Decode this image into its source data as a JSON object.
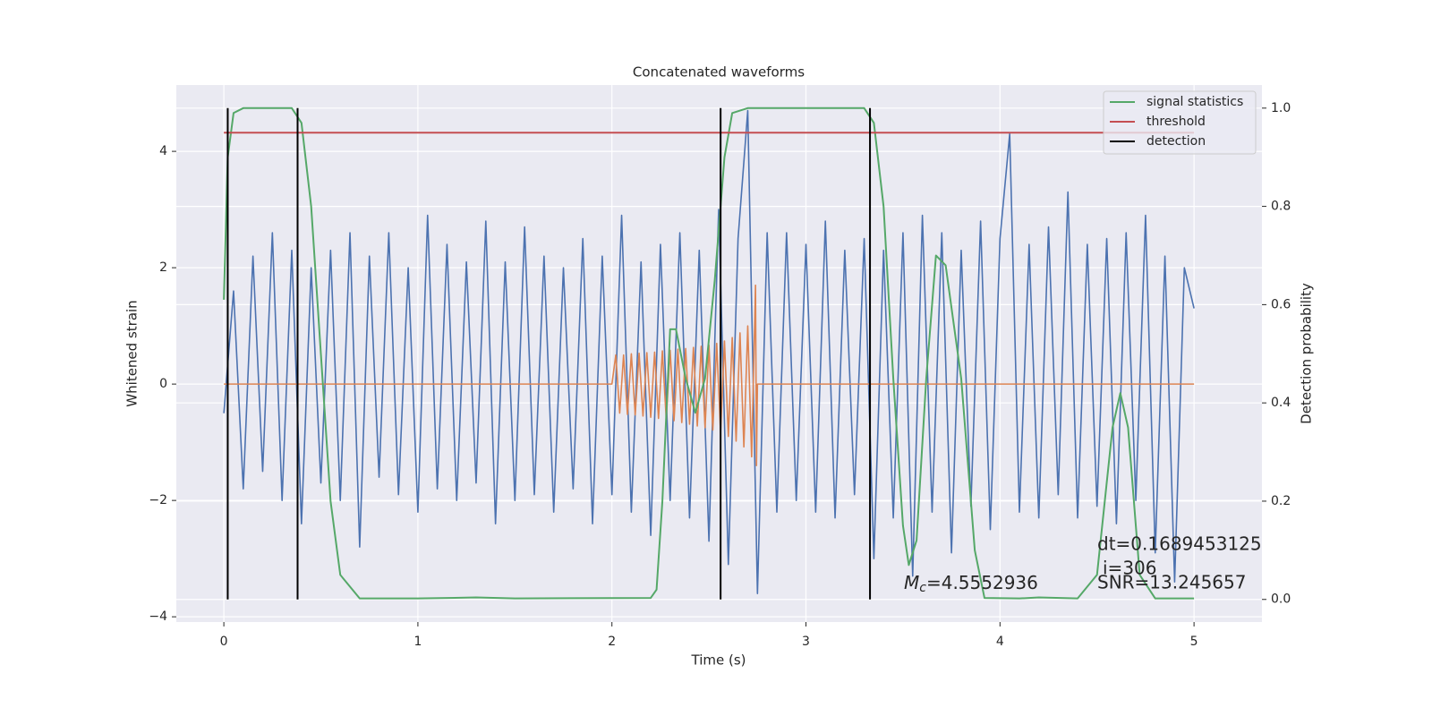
{
  "chart_data": {
    "type": "line",
    "title": "Concatenated waveforms",
    "xlabel": "Time (s)",
    "ylabel": "Whitened strain",
    "y2label": "Detection probability",
    "xlim": [
      -0.245,
      5.35
    ],
    "ylim": [
      -4.09,
      5.14
    ],
    "y2lim": [
      -0.046,
      1.047
    ],
    "xticks": [
      0,
      1,
      2,
      3,
      4,
      5
    ],
    "yticks": [
      {
        "value": -4,
        "label": "−4"
      },
      {
        "value": -2,
        "label": "−2"
      },
      0,
      2,
      4
    ],
    "y2ticks": [
      {
        "value": 0,
        "label": "0.0"
      },
      {
        "value": 0.2,
        "label": "0.2"
      },
      {
        "value": 0.4,
        "label": "0.4"
      },
      {
        "value": 0.6,
        "label": "0.6"
      },
      {
        "value": 0.8,
        "label": "0.8"
      },
      {
        "value": 1,
        "label": "1.0"
      }
    ],
    "grid": true,
    "legend": "upper right",
    "series": [
      {
        "color": "#4c72b0",
        "x": [
          0,
          0.05,
          0.1,
          0.15,
          0.2,
          0.25,
          0.3,
          0.35,
          0.4,
          0.45,
          0.5,
          0.55,
          0.6,
          0.65,
          0.7,
          0.75,
          0.8,
          0.85,
          0.9,
          0.95,
          1,
          1.05,
          1.1,
          1.15,
          1.2,
          1.25,
          1.3,
          1.35,
          1.4,
          1.45,
          1.5,
          1.55,
          1.6,
          1.65,
          1.7,
          1.75,
          1.8,
          1.85,
          1.9,
          1.95,
          2,
          2.05,
          2.1,
          2.15,
          2.2,
          2.25,
          2.3,
          2.35,
          2.4,
          2.45,
          2.5,
          2.55,
          2.6,
          2.65,
          2.7,
          2.75,
          2.8,
          2.85,
          2.9,
          2.95,
          3,
          3.05,
          3.1,
          3.15,
          3.2,
          3.25,
          3.3,
          3.35,
          3.4,
          3.45,
          3.5,
          3.55,
          3.6,
          3.65,
          3.7,
          3.75,
          3.8,
          3.85,
          3.9,
          3.95,
          4,
          4.05,
          4.1,
          4.15,
          4.2,
          4.25,
          4.3,
          4.35,
          4.4,
          4.45,
          4.5,
          4.55,
          4.6,
          4.65,
          4.7,
          4.75,
          4.8,
          4.85,
          4.9,
          4.95,
          5
        ],
        "values": [
          -0.5,
          1.6,
          -1.8,
          2.2,
          -1.5,
          2.6,
          -2.0,
          2.3,
          -2.4,
          2.0,
          -1.7,
          2.3,
          -2.0,
          2.6,
          -2.8,
          2.2,
          -1.6,
          2.6,
          -1.9,
          2.0,
          -2.2,
          2.9,
          -1.8,
          2.4,
          -2.0,
          2.1,
          -1.7,
          2.8,
          -2.4,
          2.1,
          -2.0,
          2.7,
          -1.9,
          2.2,
          -2.2,
          2.0,
          -1.8,
          2.5,
          -2.4,
          2.2,
          -1.9,
          2.9,
          -2.2,
          2.1,
          -2.6,
          2.4,
          -2.0,
          2.6,
          -2.3,
          2.3,
          -2.7,
          3.0,
          -3.1,
          2.5,
          4.7,
          -3.6,
          2.6,
          -2.2,
          2.6,
          -2.0,
          2.4,
          -2.2,
          2.8,
          -2.3,
          2.3,
          -1.9,
          2.5,
          -3.0,
          2.3,
          -2.3,
          2.6,
          -3.3,
          2.9,
          -2.2,
          2.6,
          -2.9,
          2.3,
          -2.1,
          2.8,
          -2.5,
          2.5,
          4.3,
          -2.2,
          2.4,
          -2.3,
          2.7,
          -1.9,
          3.3,
          -2.3,
          2.4,
          -2.1,
          2.5,
          -2.4,
          2.6,
          -2.0,
          2.9,
          -2.9,
          2.2,
          -3.4,
          2.0,
          1.3
        ]
      },
      {
        "color": "#dd8452",
        "x": [
          0,
          2,
          2.02,
          2.04,
          2.06,
          2.08,
          2.1,
          2.12,
          2.14,
          2.16,
          2.18,
          2.2,
          2.22,
          2.24,
          2.26,
          2.28,
          2.3,
          2.32,
          2.34,
          2.36,
          2.38,
          2.4,
          2.42,
          2.44,
          2.46,
          2.48,
          2.5,
          2.52,
          2.54,
          2.56,
          2.58,
          2.6,
          2.62,
          2.64,
          2.66,
          2.68,
          2.7,
          2.72,
          2.74,
          2.745,
          2.75,
          5
        ],
        "values": [
          0,
          0,
          0.5,
          -0.5,
          0.5,
          -0.52,
          0.52,
          -0.53,
          0.53,
          -0.55,
          0.54,
          -0.57,
          0.55,
          -0.59,
          0.57,
          -0.61,
          0.58,
          -0.63,
          0.6,
          -0.66,
          0.61,
          -0.69,
          0.63,
          -0.72,
          0.65,
          -0.75,
          0.67,
          -0.79,
          0.7,
          -0.84,
          0.74,
          -0.9,
          0.8,
          -0.98,
          0.88,
          -1.08,
          1.0,
          -1.25,
          1.7,
          -1.4,
          0,
          0
        ]
      },
      {
        "name": "signal statistics",
        "color": "#55a868",
        "axis": "y2",
        "x": [
          0,
          0.02,
          0.05,
          0.1,
          0.35,
          0.4,
          0.45,
          0.5,
          0.55,
          0.6,
          0.7,
          1,
          1.3,
          1.5,
          2.2,
          2.23,
          2.26,
          2.3,
          2.33,
          2.38,
          2.43,
          2.48,
          2.53,
          2.58,
          2.62,
          2.7,
          3.3,
          3.35,
          3.4,
          3.45,
          3.5,
          3.53,
          3.57,
          3.62,
          3.67,
          3.72,
          3.8,
          3.87,
          3.92,
          4.1,
          4.2,
          4.4,
          4.5,
          4.58,
          4.62,
          4.66,
          4.72,
          4.8,
          5
        ],
        "values": [
          0.61,
          0.9,
          0.99,
          1.0,
          1.0,
          0.97,
          0.8,
          0.5,
          0.2,
          0.05,
          0.002,
          0.002,
          0.004,
          0.002,
          0.003,
          0.02,
          0.2,
          0.55,
          0.55,
          0.45,
          0.38,
          0.45,
          0.65,
          0.9,
          0.99,
          1.0,
          1.0,
          0.97,
          0.8,
          0.45,
          0.15,
          0.07,
          0.12,
          0.45,
          0.7,
          0.68,
          0.45,
          0.1,
          0.003,
          0.002,
          0.004,
          0.002,
          0.05,
          0.35,
          0.42,
          0.35,
          0.05,
          0.002,
          0.002
        ]
      },
      {
        "name": "threshold",
        "color": "#c44e52",
        "axis": "y2",
        "x": [
          0,
          5
        ],
        "values": [
          0.95,
          0.95
        ]
      },
      {
        "name": "detection",
        "color": "#000000",
        "axis": "y2",
        "x": [
          0.02,
          0.02,
          0.02,
          0.38,
          0.38,
          0.38,
          2.56,
          2.56,
          2.56,
          3.33,
          3.33
        ],
        "values": [
          0,
          1,
          null,
          0,
          1,
          null,
          0,
          1,
          null,
          0,
          1
        ]
      }
    ],
    "annotations": [
      {
        "symbol": "M",
        "subscript": "c",
        "text": "=4.5552936"
      },
      {
        "text": "dt=0.1689453125"
      },
      {
        "text": "i=306"
      },
      {
        "text": "SNR=13.245657"
      }
    ]
  }
}
